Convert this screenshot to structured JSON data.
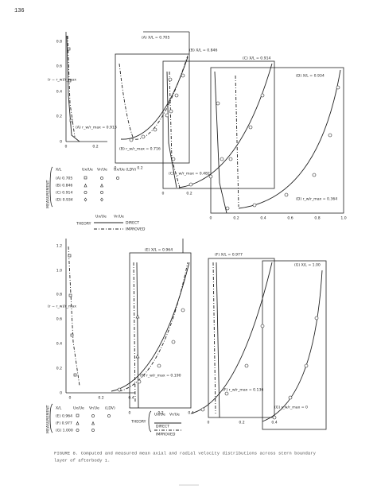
{
  "page_number": "136",
  "figure_top": {
    "y_axis_label": "(r − r_w)/r_max",
    "yticks": [
      "0",
      "0.2",
      "0.4",
      "0.6",
      "0.8"
    ],
    "panels": [
      {
        "label": "(A) X/L = 0.705",
        "note": "(A) r_w/r_max = 0.913",
        "xticks": [
          "0",
          "0.2"
        ]
      },
      {
        "label": "(B) X/L = 0.846",
        "note": "(B) r_w/r_max = 0.716",
        "xticks": [
          "0",
          "0.2"
        ]
      },
      {
        "label": "(C) X/L = 0.914",
        "note": "(C) r_w/r_max = 0.482",
        "xticks": [
          "0",
          "0.2"
        ]
      },
      {
        "label": "(D) X/L = 0.934",
        "note": "(D) r_w/r_max = 0.364",
        "xticks": [
          "0",
          "0.2",
          "0.4",
          "0.6",
          "0.8",
          "1.0"
        ]
      }
    ],
    "legend": {
      "measurement": "MEASUREMENT",
      "columns": [
        "X/L",
        "Ux/Ue",
        "Vr/Ue",
        "Ux/Ue (LDV)"
      ],
      "rows": [
        "(A) 0.705",
        "(B) 0.846",
        "(C) 0.914",
        "(D) 0.934"
      ],
      "theory": "THEORY",
      "theory_columns": [
        "Ux/Ue",
        "Vr/Ue"
      ],
      "lines": [
        "DIRECT",
        "IMPROVED"
      ]
    }
  },
  "figure_bottom": {
    "y_axis_label": "(r − r_w)/r_max",
    "yticks": [
      "0",
      "0.2",
      "0.4",
      "0.6",
      "0.8",
      "1.0",
      "1.2"
    ],
    "panels": [
      {
        "label": "(E) X/L = 0.964",
        "note": "(E) r_w/r_max = 0.190",
        "xticks": [
          "0",
          "0.2",
          "0.4"
        ]
      },
      {
        "label": "(F) X/L = 0.977",
        "note": "(F) r_w/r_max = 0.136",
        "xticks": [
          "0",
          "0.2",
          "0.4"
        ]
      },
      {
        "label": "(G) X/L = 1.00",
        "note": "(G) r_w/r_max = 0",
        "xticks": [
          "0",
          "0.2",
          "0.4"
        ]
      }
    ],
    "legend": {
      "measurement": "MEASUREMENT",
      "columns": [
        "X/L",
        "Ux/Ue",
        "Vr/Ue",
        "(LDV)"
      ],
      "rows": [
        "(E) 0.964",
        "(F) 0.977",
        "(G) 1.000"
      ],
      "theory": "THEORY",
      "theory_columns": [
        "Ux/Ue",
        "Vr/Ue"
      ],
      "lines": [
        "DIRECT",
        "IMPROVED"
      ]
    }
  },
  "caption": [
    "FIGURE 8. Computed and measured mean axial and radial velocity distributions across stern boundary",
    "layer of afterbody 1."
  ]
}
